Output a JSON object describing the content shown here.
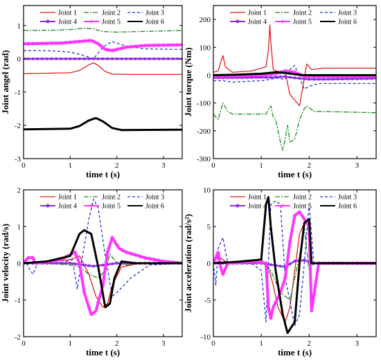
{
  "chart_data": [
    {
      "type": "line",
      "xlabel": "time t (s)",
      "ylabel": "Joint angel (rad)",
      "xlim": [
        0,
        3.4
      ],
      "ylim": [
        -3,
        1.6
      ],
      "xticks": [
        "0",
        "1",
        "2",
        "3"
      ],
      "yticks": [
        "-3",
        "-2",
        "-1",
        "0",
        "1"
      ],
      "legend_position": "top",
      "series": [
        {
          "name": "Joint 1",
          "x": [
            0,
            1.0,
            1.2,
            1.4,
            1.5,
            1.6,
            1.75,
            1.9,
            2.2,
            3.4
          ],
          "values": [
            -0.45,
            -0.42,
            -0.35,
            -0.18,
            -0.12,
            -0.2,
            -0.38,
            -0.46,
            -0.47,
            -0.47
          ]
        },
        {
          "name": "Joint 2",
          "x": [
            0,
            0.6,
            1.0,
            1.3,
            1.5,
            1.7,
            2.0,
            2.5,
            3.4
          ],
          "values": [
            0.85,
            0.86,
            0.88,
            0.92,
            0.9,
            0.82,
            0.8,
            0.82,
            0.85
          ]
        },
        {
          "name": "Joint 3",
          "x": [
            0,
            0.6,
            1.0,
            1.3,
            1.5,
            1.7,
            1.9,
            2.2,
            2.6,
            3.4
          ],
          "values": [
            0.25,
            0.24,
            0.2,
            0.1,
            0.0,
            0.35,
            0.52,
            0.38,
            0.3,
            0.28
          ]
        },
        {
          "name": "Joint 4",
          "x": [
            0,
            3.4
          ],
          "values": [
            0.0,
            0.0
          ]
        },
        {
          "name": "Joint 5",
          "x": [
            0,
            0.8,
            1.2,
            1.45,
            1.6,
            1.75,
            1.9,
            2.2,
            2.6,
            3.4
          ],
          "values": [
            0.45,
            0.47,
            0.52,
            0.55,
            0.45,
            0.28,
            0.25,
            0.35,
            0.4,
            0.42
          ]
        },
        {
          "name": "Joint 6",
          "x": [
            0,
            1.0,
            1.2,
            1.4,
            1.55,
            1.7,
            1.9,
            2.1,
            3.4
          ],
          "values": [
            -2.12,
            -2.1,
            -2.02,
            -1.85,
            -1.78,
            -1.88,
            -2.08,
            -2.14,
            -2.13
          ]
        }
      ]
    },
    {
      "type": "line",
      "xlabel": "time t (s)",
      "ylabel": "Joint torque (Nm)",
      "xlim": [
        0,
        3.4
      ],
      "ylim": [
        -300,
        250
      ],
      "xticks": [
        "0",
        "1",
        "2",
        "3"
      ],
      "yticks": [
        "-300",
        "-200",
        "-100",
        "0",
        "100",
        "200"
      ],
      "legend_position": "top",
      "series": [
        {
          "name": "Joint 1",
          "x": [
            0,
            0.1,
            0.15,
            0.2,
            0.25,
            0.4,
            0.8,
            1.1,
            1.15,
            1.18,
            1.2,
            1.25,
            1.3,
            1.5,
            1.6,
            1.7,
            1.8,
            1.85,
            1.95,
            2.05,
            2.3,
            3.4
          ],
          "values": [
            10,
            15,
            45,
            70,
            30,
            10,
            15,
            30,
            90,
            180,
            120,
            20,
            15,
            10,
            -70,
            -90,
            -110,
            -60,
            40,
            20,
            25,
            25
          ]
        },
        {
          "name": "Joint 2",
          "x": [
            0,
            0.1,
            0.2,
            0.3,
            0.4,
            0.8,
            1.1,
            1.2,
            1.25,
            1.3,
            1.4,
            1.45,
            1.5,
            1.55,
            1.6,
            1.7,
            1.8,
            1.9,
            1.95,
            2.1,
            3.4
          ],
          "values": [
            -140,
            -160,
            -100,
            -130,
            -140,
            -140,
            -140,
            -110,
            -150,
            -160,
            -240,
            -270,
            -230,
            -180,
            -240,
            -230,
            -160,
            -120,
            -110,
            -130,
            -135
          ]
        },
        {
          "name": "Joint 3",
          "x": [
            0,
            0.2,
            0.4,
            1.0,
            1.2,
            1.3,
            1.5,
            1.6,
            1.7,
            1.8,
            1.9,
            2.0,
            2.2,
            3.4
          ],
          "values": [
            -20,
            -20,
            -25,
            -20,
            -15,
            -10,
            -15,
            20,
            35,
            -10,
            -50,
            -40,
            -30,
            -30
          ]
        },
        {
          "name": "Joint 4",
          "x": [
            0,
            1.2,
            1.5,
            1.7,
            2.0,
            2.3,
            3.4
          ],
          "values": [
            -10,
            -8,
            -5,
            -10,
            -15,
            -15,
            -12
          ]
        },
        {
          "name": "Joint 5",
          "x": [
            0,
            0.5,
            1.0,
            1.3,
            1.5,
            1.7,
            1.9,
            2.1,
            3.4
          ],
          "values": [
            -5,
            -3,
            0,
            5,
            15,
            10,
            -5,
            -5,
            -5
          ]
        },
        {
          "name": "Joint 6",
          "x": [
            0,
            0.5,
            1.0,
            1.3,
            1.5,
            1.7,
            1.9,
            2.1,
            3.4
          ],
          "values": [
            0,
            2,
            5,
            10,
            8,
            3,
            0,
            0,
            0
          ]
        }
      ]
    },
    {
      "type": "line",
      "xlabel": "time t (s)",
      "ylabel": "Joint velocity (rad/s)",
      "xlim": [
        0,
        3.4
      ],
      "ylim": [
        -2,
        2
      ],
      "xticks": [
        "0",
        "1",
        "2",
        "3"
      ],
      "yticks": [
        "-2",
        "-1",
        "0",
        "1",
        "2"
      ],
      "legend_position": "top",
      "series": [
        {
          "name": "Joint 1",
          "x": [
            0,
            0.5,
            1.0,
            1.2,
            1.4,
            1.55,
            1.7,
            1.8,
            1.9,
            2.1,
            2.5,
            3.4
          ],
          "values": [
            0.0,
            0.02,
            0.1,
            0.2,
            -0.3,
            -0.9,
            -1.2,
            -1.1,
            -0.6,
            -0.1,
            0.0,
            0.0
          ]
        },
        {
          "name": "Joint 2",
          "x": [
            0,
            0.5,
            1.0,
            1.2,
            1.4,
            1.6,
            1.75,
            1.85,
            2.0,
            2.2,
            2.6,
            3.4
          ],
          "values": [
            0.0,
            0.0,
            -0.05,
            -0.1,
            -0.3,
            -0.4,
            -0.2,
            0.25,
            0.0,
            -0.05,
            0.0,
            0.0
          ]
        },
        {
          "name": "Joint 3",
          "x": [
            0,
            0.05,
            0.1,
            0.2,
            0.3,
            0.8,
            1.05,
            1.15,
            1.25,
            1.4,
            1.5,
            1.6,
            1.75,
            1.9,
            2.0,
            2.3,
            2.7,
            3.4
          ],
          "values": [
            0.0,
            0.05,
            -0.1,
            -0.3,
            0.0,
            0.0,
            0.1,
            -0.7,
            0.1,
            1.2,
            1.75,
            1.5,
            0.2,
            -0.9,
            -0.8,
            -0.4,
            -0.05,
            0.0
          ]
        },
        {
          "name": "Joint 4",
          "x": [
            0,
            1.0,
            1.3,
            1.5,
            1.7,
            2.0,
            3.4
          ],
          "values": [
            0.0,
            0.0,
            -0.05,
            -0.08,
            -0.05,
            0.0,
            0.0
          ]
        },
        {
          "name": "Joint 5",
          "x": [
            0,
            0.1,
            0.2,
            0.25,
            0.4,
            0.8,
            1.1,
            1.2,
            1.3,
            1.45,
            1.55,
            1.7,
            1.8,
            1.9,
            2.05,
            2.2,
            2.6,
            3.0,
            3.4
          ],
          "values": [
            0.0,
            0.15,
            0.15,
            0.0,
            0.02,
            0.1,
            0.3,
            0.0,
            -0.8,
            -1.4,
            -1.3,
            -0.6,
            0.3,
            0.7,
            0.4,
            0.3,
            0.15,
            0.05,
            0.0
          ]
        },
        {
          "name": "Joint 6",
          "x": [
            0,
            0.5,
            1.0,
            1.2,
            1.3,
            1.45,
            1.6,
            1.75,
            1.85,
            1.95,
            2.1,
            2.4,
            3.4
          ],
          "values": [
            0.0,
            0.05,
            0.2,
            0.8,
            0.9,
            0.8,
            -0.1,
            -1.2,
            -1.1,
            -0.4,
            0.05,
            0.0,
            0.0
          ]
        }
      ]
    },
    {
      "type": "line",
      "xlabel": "time t (s)",
      "ylabel": "Joint acceleration (rad/s²)",
      "xlim": [
        0,
        3.4
      ],
      "ylim": [
        -10,
        10
      ],
      "xticks": [
        "0",
        "1",
        "2",
        "3"
      ],
      "yticks": [
        "-10",
        "-5",
        "0",
        "5",
        "10"
      ],
      "legend_position": "top",
      "series": [
        {
          "name": "Joint 1",
          "x": [
            0,
            0.1,
            0.2,
            0.3,
            0.5,
            1.0,
            1.15,
            1.25,
            1.35,
            1.5,
            1.6,
            1.7,
            1.8,
            1.9,
            2.0,
            2.05,
            2.2,
            3.4
          ],
          "values": [
            0.0,
            1.0,
            0.5,
            0.0,
            0.0,
            0.5,
            -0.5,
            -3.0,
            -6.0,
            -8.0,
            -6.0,
            -1.0,
            4.0,
            5.5,
            6.0,
            0.0,
            0.0,
            0.0
          ]
        },
        {
          "name": "Joint 2",
          "x": [
            0,
            0.5,
            1.0,
            1.2,
            1.4,
            1.6,
            1.8,
            1.9,
            2.0,
            2.1,
            2.5,
            3.4
          ],
          "values": [
            0.0,
            0.0,
            0.2,
            -1.0,
            -4.0,
            -5.0,
            1.0,
            5.0,
            -1.0,
            0.0,
            0.0,
            0.0
          ]
        },
        {
          "name": "Joint 3",
          "x": [
            0,
            0.05,
            0.1,
            0.2,
            0.3,
            0.8,
            1.0,
            1.1,
            1.2,
            1.3,
            1.4,
            1.5,
            1.7,
            1.8,
            1.9,
            2.0,
            2.1,
            2.5,
            3.4
          ],
          "values": [
            0.0,
            -3.0,
            2.0,
            3.5,
            0.0,
            0.0,
            -1.0,
            -8.0,
            8.0,
            8.5,
            8.0,
            -2.0,
            -8.5,
            -7.0,
            0.0,
            8.0,
            0.0,
            0.0,
            0.0
          ]
        },
        {
          "name": "Joint 4",
          "x": [
            0,
            1.0,
            1.3,
            1.5,
            1.7,
            1.9,
            2.1,
            3.4
          ],
          "values": [
            0.0,
            0.0,
            -0.3,
            -0.5,
            0.3,
            0.4,
            0.0,
            0.0
          ]
        },
        {
          "name": "Joint 5",
          "x": [
            0,
            0.1,
            0.15,
            0.2,
            0.3,
            0.8,
            1.1,
            1.15,
            1.2,
            1.25,
            1.4,
            1.5,
            1.6,
            1.7,
            1.8,
            1.9,
            2.0,
            2.05,
            2.2,
            3.4
          ],
          "values": [
            0.0,
            1.5,
            -0.5,
            -1.5,
            0.0,
            0.2,
            0.0,
            -6.0,
            -7.5,
            -6.0,
            -4.0,
            -2.0,
            3.0,
            6.5,
            7.0,
            6.0,
            5.0,
            -6.5,
            0.0,
            0.0
          ]
        },
        {
          "name": "Joint 6",
          "x": [
            0,
            0.5,
            1.0,
            1.1,
            1.15,
            1.2,
            1.3,
            1.45,
            1.55,
            1.7,
            1.8,
            1.9,
            2.0,
            2.05,
            2.2,
            3.4
          ],
          "values": [
            0.0,
            0.2,
            0.5,
            8.0,
            9.0,
            5.0,
            -1.0,
            -7.0,
            -9.5,
            -8.0,
            0.0,
            5.5,
            6.0,
            0.0,
            0.0,
            0.0
          ]
        }
      ]
    }
  ],
  "styles": [
    {
      "name": "Joint 1",
      "color": "#e41a1c",
      "dash": "",
      "width": 1.3,
      "marker": ""
    },
    {
      "name": "Joint 2",
      "color": "#1e8a1e",
      "dash": "7 2 2 2",
      "width": 1.3,
      "marker": ""
    },
    {
      "name": "Joint 3",
      "color": "#1f33d6",
      "dash": "4 3",
      "width": 1.3,
      "marker": ""
    },
    {
      "name": "Joint 4",
      "color": "#8a2be2",
      "dash": "",
      "width": 2.5,
      "marker": "circle"
    },
    {
      "name": "Joint 5",
      "color": "#ff33ff",
      "dash": "",
      "width": 4,
      "marker": "plus"
    },
    {
      "name": "Joint 6",
      "color": "#000000",
      "dash": "",
      "width": 3,
      "marker": ""
    }
  ]
}
